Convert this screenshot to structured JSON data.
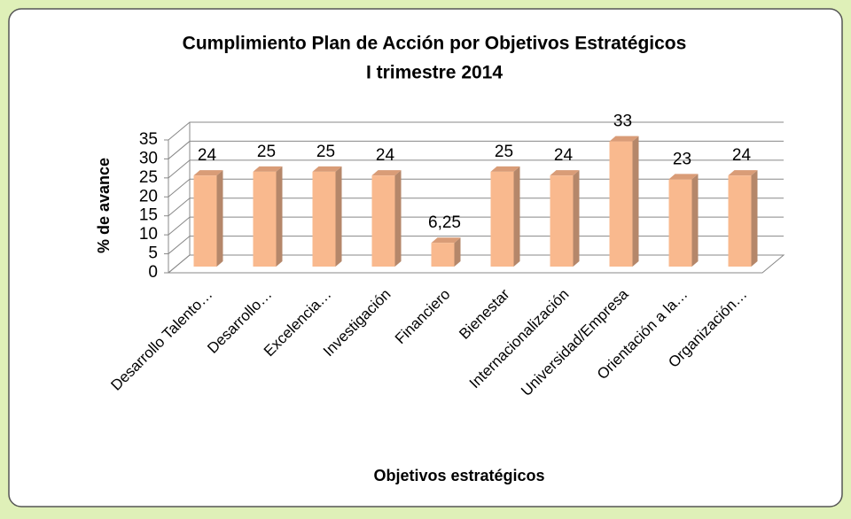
{
  "chart_data": {
    "type": "bar3d",
    "title": "Cumplimiento Plan de Acción por Objetivos Estratégicos",
    "subtitle": "I trimestre 2014",
    "y_label": "% de avance",
    "x_label": "Objetivos estratégicos",
    "categories": [
      "Desarrollo Talento…",
      "Desarrollo…",
      "Excelencia…",
      "Investigación",
      "Financiero",
      "Bienestar",
      "Internacionalización",
      "Universidad/Empresa",
      "Orientación a la…",
      "Organización…"
    ],
    "values": [
      24,
      25,
      25,
      24,
      6.25,
      25,
      24,
      33,
      23,
      24
    ],
    "value_labels": [
      "24",
      "25",
      "25",
      "24",
      "6,25",
      "25",
      "24",
      "33",
      "23",
      "24"
    ],
    "color": "#f9b98e",
    "ylim": [
      0,
      35
    ],
    "yticks": [
      0,
      5,
      10,
      15,
      20,
      25,
      30,
      35
    ],
    "grid": true
  }
}
